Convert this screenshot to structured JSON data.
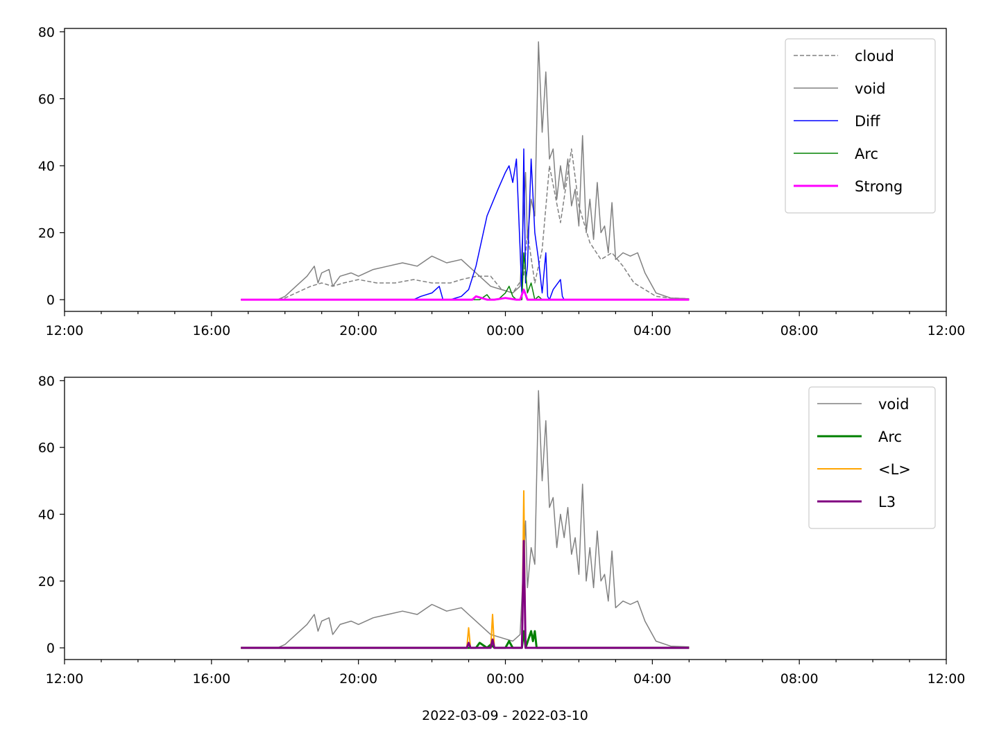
{
  "chart_data": [
    {
      "type": "line",
      "title": "",
      "xlabel": "",
      "ylabel": "",
      "x_unit": "hours since 2022-03-09 12:00",
      "xlim": [
        0,
        24
      ],
      "ylim": [
        -3.5,
        81
      ],
      "x_ticks": [
        "12:00",
        "16:00",
        "20:00",
        "00:00",
        "04:00",
        "08:00",
        "12:00"
      ],
      "y_ticks": [
        "0",
        "20",
        "40",
        "60",
        "80"
      ],
      "legend_position": "upper right",
      "series": [
        {
          "name": "cloud",
          "color": "#808080",
          "style": "dashed",
          "width": 1.5,
          "x": [
            4.8,
            5.8,
            6.0,
            6.3,
            6.7,
            7.0,
            7.3,
            7.6,
            8.0,
            8.5,
            9.0,
            9.5,
            10.0,
            10.5,
            10.8,
            11.2,
            11.6,
            11.9,
            12.2,
            12.5,
            12.6,
            12.8,
            13.0,
            13.2,
            13.5,
            13.8,
            14.0,
            14.3,
            14.6,
            14.9,
            15.2,
            15.5,
            15.8,
            16.1,
            16.5,
            17.0
          ],
          "y": [
            0,
            0,
            0.5,
            2,
            4,
            5,
            4,
            5,
            6,
            5,
            5,
            6,
            5,
            5,
            6,
            7,
            7,
            3,
            2,
            7,
            20,
            5,
            15,
            40,
            23,
            45,
            28,
            17,
            12,
            14,
            10,
            5,
            3,
            1,
            0.5,
            0.3
          ]
        },
        {
          "name": "void",
          "color": "#808080",
          "style": "solid",
          "width": 1.5,
          "x": [
            4.8,
            5.8,
            6.0,
            6.3,
            6.6,
            6.8,
            6.9,
            7.0,
            7.2,
            7.3,
            7.5,
            7.8,
            8.0,
            8.4,
            8.8,
            9.2,
            9.6,
            10.0,
            10.4,
            10.8,
            11.0,
            11.3,
            11.6,
            11.9,
            12.2,
            12.4,
            12.55,
            12.6,
            12.7,
            12.8,
            12.9,
            13.0,
            13.1,
            13.2,
            13.3,
            13.4,
            13.5,
            13.6,
            13.7,
            13.8,
            13.9,
            14.0,
            14.1,
            14.2,
            14.3,
            14.4,
            14.5,
            14.6,
            14.7,
            14.8,
            14.9,
            15.0,
            15.2,
            15.4,
            15.6,
            15.8,
            16.1,
            16.5,
            17.0
          ],
          "y": [
            0,
            0,
            1,
            4,
            7,
            10,
            5,
            8,
            9,
            4,
            7,
            8,
            7,
            9,
            10,
            11,
            10,
            13,
            11,
            12,
            10,
            7,
            4,
            3,
            2,
            4,
            38,
            18,
            30,
            25,
            77,
            50,
            68,
            42,
            45,
            30,
            40,
            33,
            42,
            28,
            33,
            22,
            49,
            20,
            30,
            18,
            35,
            20,
            22,
            14,
            29,
            12,
            14,
            13,
            14,
            8,
            2,
            0.5,
            0.3
          ]
        },
        {
          "name": "Diff",
          "color": "#0000ff",
          "style": "solid",
          "width": 1.5,
          "x": [
            9.0,
            9.5,
            9.7,
            10.0,
            10.2,
            10.3,
            10.5,
            10.8,
            11.0,
            11.2,
            11.5,
            11.8,
            12.0,
            12.1,
            12.2,
            12.3,
            12.4,
            12.45,
            12.5,
            12.55,
            12.6,
            12.7,
            12.8,
            12.9,
            13.0,
            13.1,
            13.15,
            13.2,
            13.3,
            13.5,
            13.55,
            13.6,
            13.7,
            17.0
          ],
          "y": [
            0,
            0,
            1,
            2,
            4,
            0,
            0,
            1,
            3,
            10,
            25,
            33,
            38,
            40,
            35,
            42,
            15,
            1,
            45,
            5,
            10,
            42,
            20,
            12,
            2,
            14,
            1,
            0,
            3,
            6,
            1,
            0,
            0,
            0
          ]
        },
        {
          "name": "Arc",
          "color": "#008000",
          "style": "solid",
          "width": 1.5,
          "x": [
            4.8,
            11.0,
            11.3,
            11.5,
            11.6,
            11.7,
            11.8,
            12.0,
            12.1,
            12.2,
            12.3,
            12.4,
            12.45,
            12.5,
            12.6,
            12.7,
            12.8,
            12.9,
            13.0,
            13.1,
            17.0
          ],
          "y": [
            0,
            0,
            0,
            1.5,
            0,
            0,
            0,
            2,
            4,
            1,
            0,
            0,
            0,
            14,
            2,
            5,
            0,
            1,
            0,
            0,
            0
          ]
        },
        {
          "name": "Strong",
          "color": "#ff00ff",
          "style": "solid",
          "width": 3,
          "x": [
            4.8,
            11.0,
            11.1,
            11.2,
            11.5,
            11.6,
            11.7,
            12.0,
            12.3,
            12.4,
            12.5,
            12.6,
            13.0,
            17.0
          ],
          "y": [
            0,
            0,
            0,
            1,
            0,
            0,
            0,
            0.5,
            0,
            0,
            3,
            0,
            0,
            0
          ]
        }
      ]
    },
    {
      "type": "line",
      "title": "",
      "xlabel": "2022-03-09 - 2022-03-10",
      "ylabel": "",
      "x_unit": "hours since 2022-03-09 12:00",
      "xlim": [
        0,
        24
      ],
      "ylim": [
        -3.5,
        81
      ],
      "x_ticks": [
        "12:00",
        "16:00",
        "20:00",
        "00:00",
        "04:00",
        "08:00",
        "12:00"
      ],
      "y_ticks": [
        "0",
        "20",
        "40",
        "60",
        "80"
      ],
      "legend_position": "upper right",
      "series": [
        {
          "name": "void",
          "color": "#808080",
          "style": "solid",
          "width": 1.5,
          "x": [
            4.8,
            5.8,
            6.0,
            6.3,
            6.6,
            6.8,
            6.9,
            7.0,
            7.2,
            7.3,
            7.5,
            7.8,
            8.0,
            8.4,
            8.8,
            9.2,
            9.6,
            10.0,
            10.4,
            10.8,
            11.0,
            11.3,
            11.6,
            11.9,
            12.2,
            12.4,
            12.55,
            12.6,
            12.7,
            12.8,
            12.9,
            13.0,
            13.1,
            13.2,
            13.3,
            13.4,
            13.5,
            13.6,
            13.7,
            13.8,
            13.9,
            14.0,
            14.1,
            14.2,
            14.3,
            14.4,
            14.5,
            14.6,
            14.7,
            14.8,
            14.9,
            15.0,
            15.2,
            15.4,
            15.6,
            15.8,
            16.1,
            16.5,
            17.0
          ],
          "y": [
            0,
            0,
            1,
            4,
            7,
            10,
            5,
            8,
            9,
            4,
            7,
            8,
            7,
            9,
            10,
            11,
            10,
            13,
            11,
            12,
            10,
            7,
            4,
            3,
            2,
            4,
            38,
            18,
            30,
            25,
            77,
            50,
            68,
            42,
            45,
            30,
            40,
            33,
            42,
            28,
            33,
            22,
            49,
            20,
            30,
            18,
            35,
            20,
            22,
            14,
            29,
            12,
            14,
            13,
            14,
            8,
            2,
            0.5,
            0.3
          ]
        },
        {
          "name": "Arc",
          "color": "#008000",
          "style": "solid",
          "width": 3,
          "x": [
            4.8,
            11.0,
            11.2,
            11.3,
            11.5,
            11.6,
            11.7,
            11.8,
            12.0,
            12.1,
            12.2,
            12.3,
            12.45,
            12.5,
            12.55,
            12.7,
            12.75,
            12.8,
            12.85,
            12.9,
            13.0,
            17.0
          ],
          "y": [
            0,
            0,
            0,
            1.5,
            0,
            1,
            0,
            0,
            0,
            2,
            0,
            0,
            0,
            5,
            0,
            5,
            2,
            5,
            0,
            0,
            0,
            0
          ]
        },
        {
          "name": "<L>",
          "color": "#ffa500",
          "style": "solid",
          "width": 2,
          "x": [
            4.8,
            10.95,
            11.0,
            11.05,
            11.1,
            11.5,
            11.6,
            11.65,
            11.7,
            11.75,
            12.3,
            12.4,
            12.45,
            12.5,
            12.55,
            12.6,
            13.0,
            17.0
          ],
          "y": [
            0,
            0,
            6,
            0,
            0,
            0,
            0,
            10,
            0,
            0,
            0,
            0,
            0,
            47,
            0,
            0,
            0,
            0
          ]
        },
        {
          "name": "L3",
          "color": "#800080",
          "style": "solid",
          "width": 3,
          "x": [
            4.8,
            10.95,
            11.0,
            11.05,
            11.1,
            11.6,
            11.65,
            11.7,
            11.75,
            12.4,
            12.45,
            12.5,
            12.55,
            12.6,
            13.0,
            17.0
          ],
          "y": [
            0,
            0,
            1.5,
            0,
            0,
            0,
            2.5,
            0,
            0,
            0,
            0,
            32,
            0,
            0,
            0,
            0
          ]
        }
      ]
    }
  ]
}
